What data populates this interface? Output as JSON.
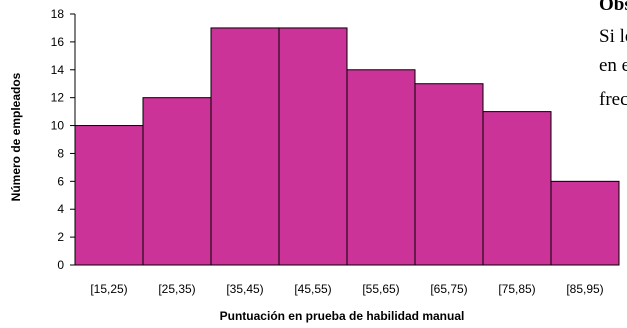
{
  "side_text": {
    "title": "Obs",
    "line1": "Si lo",
    "line2": "en e",
    "line3": "frec"
  },
  "chart_data": {
    "type": "bar",
    "categories": [
      "[15,25)",
      "[25,35)",
      "[35,45)",
      "[45,55)",
      "[55,65)",
      "[65,75)",
      "[75,85)",
      "[85,95)"
    ],
    "values": [
      10,
      12,
      17,
      17,
      14,
      13,
      11,
      6
    ],
    "xlabel": "Puntuación en prueba de habilidad manual",
    "ylabel": "Número de empleados",
    "ylim": [
      0,
      18
    ],
    "yticks": [
      0,
      2,
      4,
      6,
      8,
      10,
      12,
      14,
      16,
      18
    ],
    "bar_color": "#CC3399",
    "grid": false
  }
}
